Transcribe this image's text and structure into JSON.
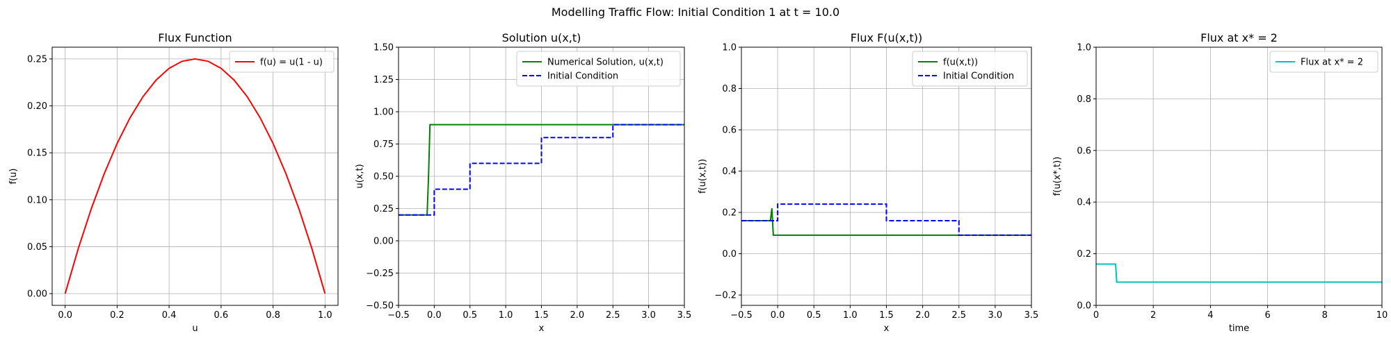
{
  "figure": {
    "suptitle": "Modelling Traffic Flow: Initial Condition 1 at t = 10.0"
  },
  "chart_data": [
    {
      "type": "line",
      "title": "Flux Function",
      "xlabel": "u",
      "ylabel": "f(u)",
      "xlim": [
        -0.05,
        1.05
      ],
      "ylim": [
        -0.0125,
        0.2625
      ],
      "xticks": [
        0.0,
        0.2,
        0.4,
        0.6,
        0.8,
        1.0
      ],
      "xticklabels": [
        "0.0",
        "0.2",
        "0.4",
        "0.6",
        "0.8",
        "1.0"
      ],
      "yticks": [
        0.0,
        0.05,
        0.1,
        0.15,
        0.2,
        0.25
      ],
      "yticklabels": [
        "0.00",
        "0.05",
        "0.10",
        "0.15",
        "0.20",
        "0.25"
      ],
      "grid": true,
      "legend_loc": "upper right",
      "series": [
        {
          "name": "f(u) = u(1 - u)",
          "color": "#ff0000",
          "dash": "solid",
          "x": [
            0,
            0.05,
            0.1,
            0.15,
            0.2,
            0.25,
            0.3,
            0.35,
            0.4,
            0.45,
            0.5,
            0.55,
            0.6,
            0.65,
            0.7,
            0.75,
            0.8,
            0.85,
            0.9,
            0.95,
            1.0
          ],
          "y": [
            0,
            0.0475,
            0.09,
            0.1275,
            0.16,
            0.1875,
            0.21,
            0.2275,
            0.24,
            0.2475,
            0.25,
            0.2475,
            0.24,
            0.2275,
            0.21,
            0.1875,
            0.16,
            0.1275,
            0.09,
            0.0475,
            0
          ]
        }
      ]
    },
    {
      "type": "line",
      "title": "Solution u(x,t)",
      "xlabel": "x",
      "ylabel": "u(x,t)",
      "xlim": [
        -0.5,
        3.5
      ],
      "ylim": [
        -0.5,
        1.5
      ],
      "xticks": [
        -0.5,
        0.0,
        0.5,
        1.0,
        1.5,
        2.0,
        2.5,
        3.0,
        3.5
      ],
      "xticklabels": [
        "−0.5",
        "0.0",
        "0.5",
        "1.0",
        "1.5",
        "2.0",
        "2.5",
        "3.0",
        "3.5"
      ],
      "yticks": [
        -0.5,
        -0.25,
        0.0,
        0.25,
        0.5,
        0.75,
        1.0,
        1.25,
        1.5
      ],
      "yticklabels": [
        "−0.50",
        "−0.25",
        "0.00",
        "0.25",
        "0.50",
        "0.75",
        "1.00",
        "1.25",
        "1.50"
      ],
      "grid": true,
      "legend_loc": "upper right",
      "series": [
        {
          "name": "Numerical Solution, u(x,t)",
          "color": "#008000",
          "dash": "solid",
          "x": [
            -0.5,
            -0.1,
            -0.08,
            -0.06,
            3.5
          ],
          "y": [
            0.2,
            0.2,
            0.5,
            0.9,
            0.9
          ]
        },
        {
          "name": "Initial Condition",
          "color": "#0000ff",
          "dash": "dashed",
          "x": [
            -0.5,
            0.0,
            0.0,
            0.5,
            0.5,
            1.5,
            1.5,
            2.5,
            2.5,
            3.5
          ],
          "y": [
            0.2,
            0.2,
            0.4,
            0.4,
            0.6,
            0.6,
            0.8,
            0.8,
            0.9,
            0.9
          ]
        }
      ]
    },
    {
      "type": "line",
      "title": "Flux F(u(x,t))",
      "xlabel": "x",
      "ylabel": "f(u(x,t))",
      "xlim": [
        -0.5,
        3.5
      ],
      "ylim": [
        -0.25,
        1.0
      ],
      "xticks": [
        -0.5,
        0.0,
        0.5,
        1.0,
        1.5,
        2.0,
        2.5,
        3.0,
        3.5
      ],
      "xticklabels": [
        "−0.5",
        "0.0",
        "0.5",
        "1.0",
        "1.5",
        "2.0",
        "2.5",
        "3.0",
        "3.5"
      ],
      "yticks": [
        -0.2,
        0.0,
        0.2,
        0.4,
        0.6,
        0.8,
        1.0
      ],
      "yticklabels": [
        "−0.2",
        "0.0",
        "0.2",
        "0.4",
        "0.6",
        "0.8",
        "1.0"
      ],
      "grid": true,
      "legend_loc": "upper right",
      "series": [
        {
          "name": "f(u(x,t))",
          "color": "#008000",
          "dash": "solid",
          "x": [
            -0.5,
            -0.1,
            -0.08,
            -0.06,
            3.5
          ],
          "y": [
            0.16,
            0.16,
            0.22,
            0.09,
            0.09
          ]
        },
        {
          "name": "Initial Condition",
          "color": "#0000ff",
          "dash": "dashed",
          "x": [
            -0.5,
            0.0,
            0.0,
            0.5,
            0.5,
            1.5,
            1.5,
            2.5,
            2.5,
            3.5
          ],
          "y": [
            0.16,
            0.16,
            0.24,
            0.24,
            0.24,
            0.24,
            0.16,
            0.16,
            0.09,
            0.09
          ]
        }
      ]
    },
    {
      "type": "line",
      "title": "Flux at x* = 2",
      "xlabel": "time",
      "ylabel": "f(u(x*,t))",
      "xlim": [
        0,
        10
      ],
      "ylim": [
        0,
        1
      ],
      "xticks": [
        0,
        2,
        4,
        6,
        8,
        10
      ],
      "xticklabels": [
        "0",
        "2",
        "4",
        "6",
        "8",
        "10"
      ],
      "yticks": [
        0.0,
        0.2,
        0.4,
        0.6,
        0.8,
        1.0
      ],
      "yticklabels": [
        "0.0",
        "0.2",
        "0.4",
        "0.6",
        "0.8",
        "1.0"
      ],
      "grid": true,
      "legend_loc": "upper right",
      "series": [
        {
          "name": "Flux at x* = 2",
          "color": "#00bfbf",
          "dash": "solid",
          "x": [
            0,
            0.68,
            0.7,
            0.72,
            10
          ],
          "y": [
            0.16,
            0.16,
            0.13,
            0.09,
            0.09
          ]
        }
      ]
    }
  ]
}
